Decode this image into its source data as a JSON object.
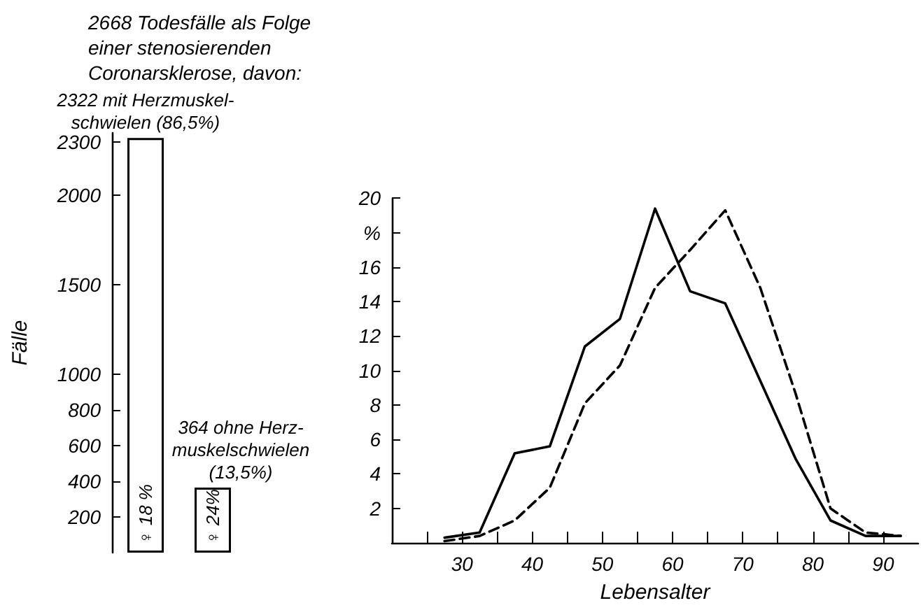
{
  "chart_data": [
    {
      "type": "bar",
      "title": "2668 Todesfälle als Folge\neiner stenosierenden\nCoronarsklerose, davon:",
      "ylabel": "Fälle",
      "categories": [
        null,
        null
      ],
      "values": [
        2322,
        364
      ],
      "color": "#ffffff",
      "value_labels": [
        "2322 mit Herzmuskel-\nschwielen (86,5%)",
        "364 ohne Herz-\nmuskelschwielen\n(13,5%)"
      ],
      "annotations": [
        "♀ 18 %",
        "♀ 24%"
      ],
      "ylim": [
        0,
        2350
      ],
      "yticks": [
        200,
        400,
        600,
        800,
        1000,
        1500,
        2000,
        2300
      ],
      "tick_labels": "y",
      "grid": false
    },
    {
      "type": "line",
      "xlabel": "Lebensalter",
      "xlim": [
        20,
        95
      ],
      "xticks": [
        {
          "value": 25,
          "label": null
        },
        30,
        {
          "value": 35,
          "label": null
        },
        40,
        {
          "value": 45,
          "label": null
        },
        50,
        {
          "value": 55,
          "label": null
        },
        60,
        {
          "value": 65,
          "label": null
        },
        70,
        {
          "value": 75,
          "label": null
        },
        80,
        {
          "value": 85,
          "label": null
        },
        90
      ],
      "ylim": [
        0,
        20
      ],
      "yticks": [
        2,
        4,
        6,
        8,
        10,
        12,
        14,
        16,
        {
          "value": 18,
          "label": "%"
        },
        20
      ],
      "grid": false,
      "marker": "none",
      "x": [
        27.5,
        32.5,
        37.5,
        42.5,
        47.5,
        52.5,
        57.5,
        62.5,
        67.5,
        72.5,
        77.5,
        82.5,
        87.5,
        92.5
      ],
      "series": [
        {
          "color": "#000000",
          "line_style": "solid",
          "values": [
            0.3,
            0.6,
            5.2,
            5.6,
            11.4,
            13.0,
            19.4,
            14.6,
            13.9,
            9.4,
            4.9,
            1.3,
            0.4,
            0.4
          ]
        },
        {
          "color": "#000000",
          "line_style": "dashed",
          "values": [
            0.1,
            0.4,
            1.3,
            3.2,
            8.1,
            10.3,
            14.8,
            17.0,
            19.3,
            14.8,
            8.7,
            2.0,
            0.6,
            0.4
          ]
        }
      ]
    }
  ]
}
